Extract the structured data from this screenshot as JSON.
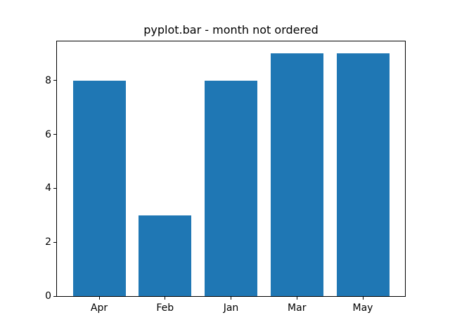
{
  "chart_data": {
    "type": "bar",
    "title": "pyplot.bar - month not ordered",
    "categories": [
      "Apr",
      "Feb",
      "Jan",
      "Mar",
      "May"
    ],
    "values": [
      8,
      3,
      8,
      9,
      9
    ],
    "yticks": [
      0,
      2,
      4,
      6,
      8
    ],
    "ylim": [
      0,
      9.45
    ],
    "xlim": [
      -0.64,
      4.64
    ],
    "bar_width_units": 0.8,
    "bar_color": "#1f77b4",
    "spine_color": "#000000",
    "text_color": "#000000",
    "background": "#ffffff",
    "grid": false,
    "legend_position": "none",
    "xlabel": "",
    "ylabel": ""
  }
}
